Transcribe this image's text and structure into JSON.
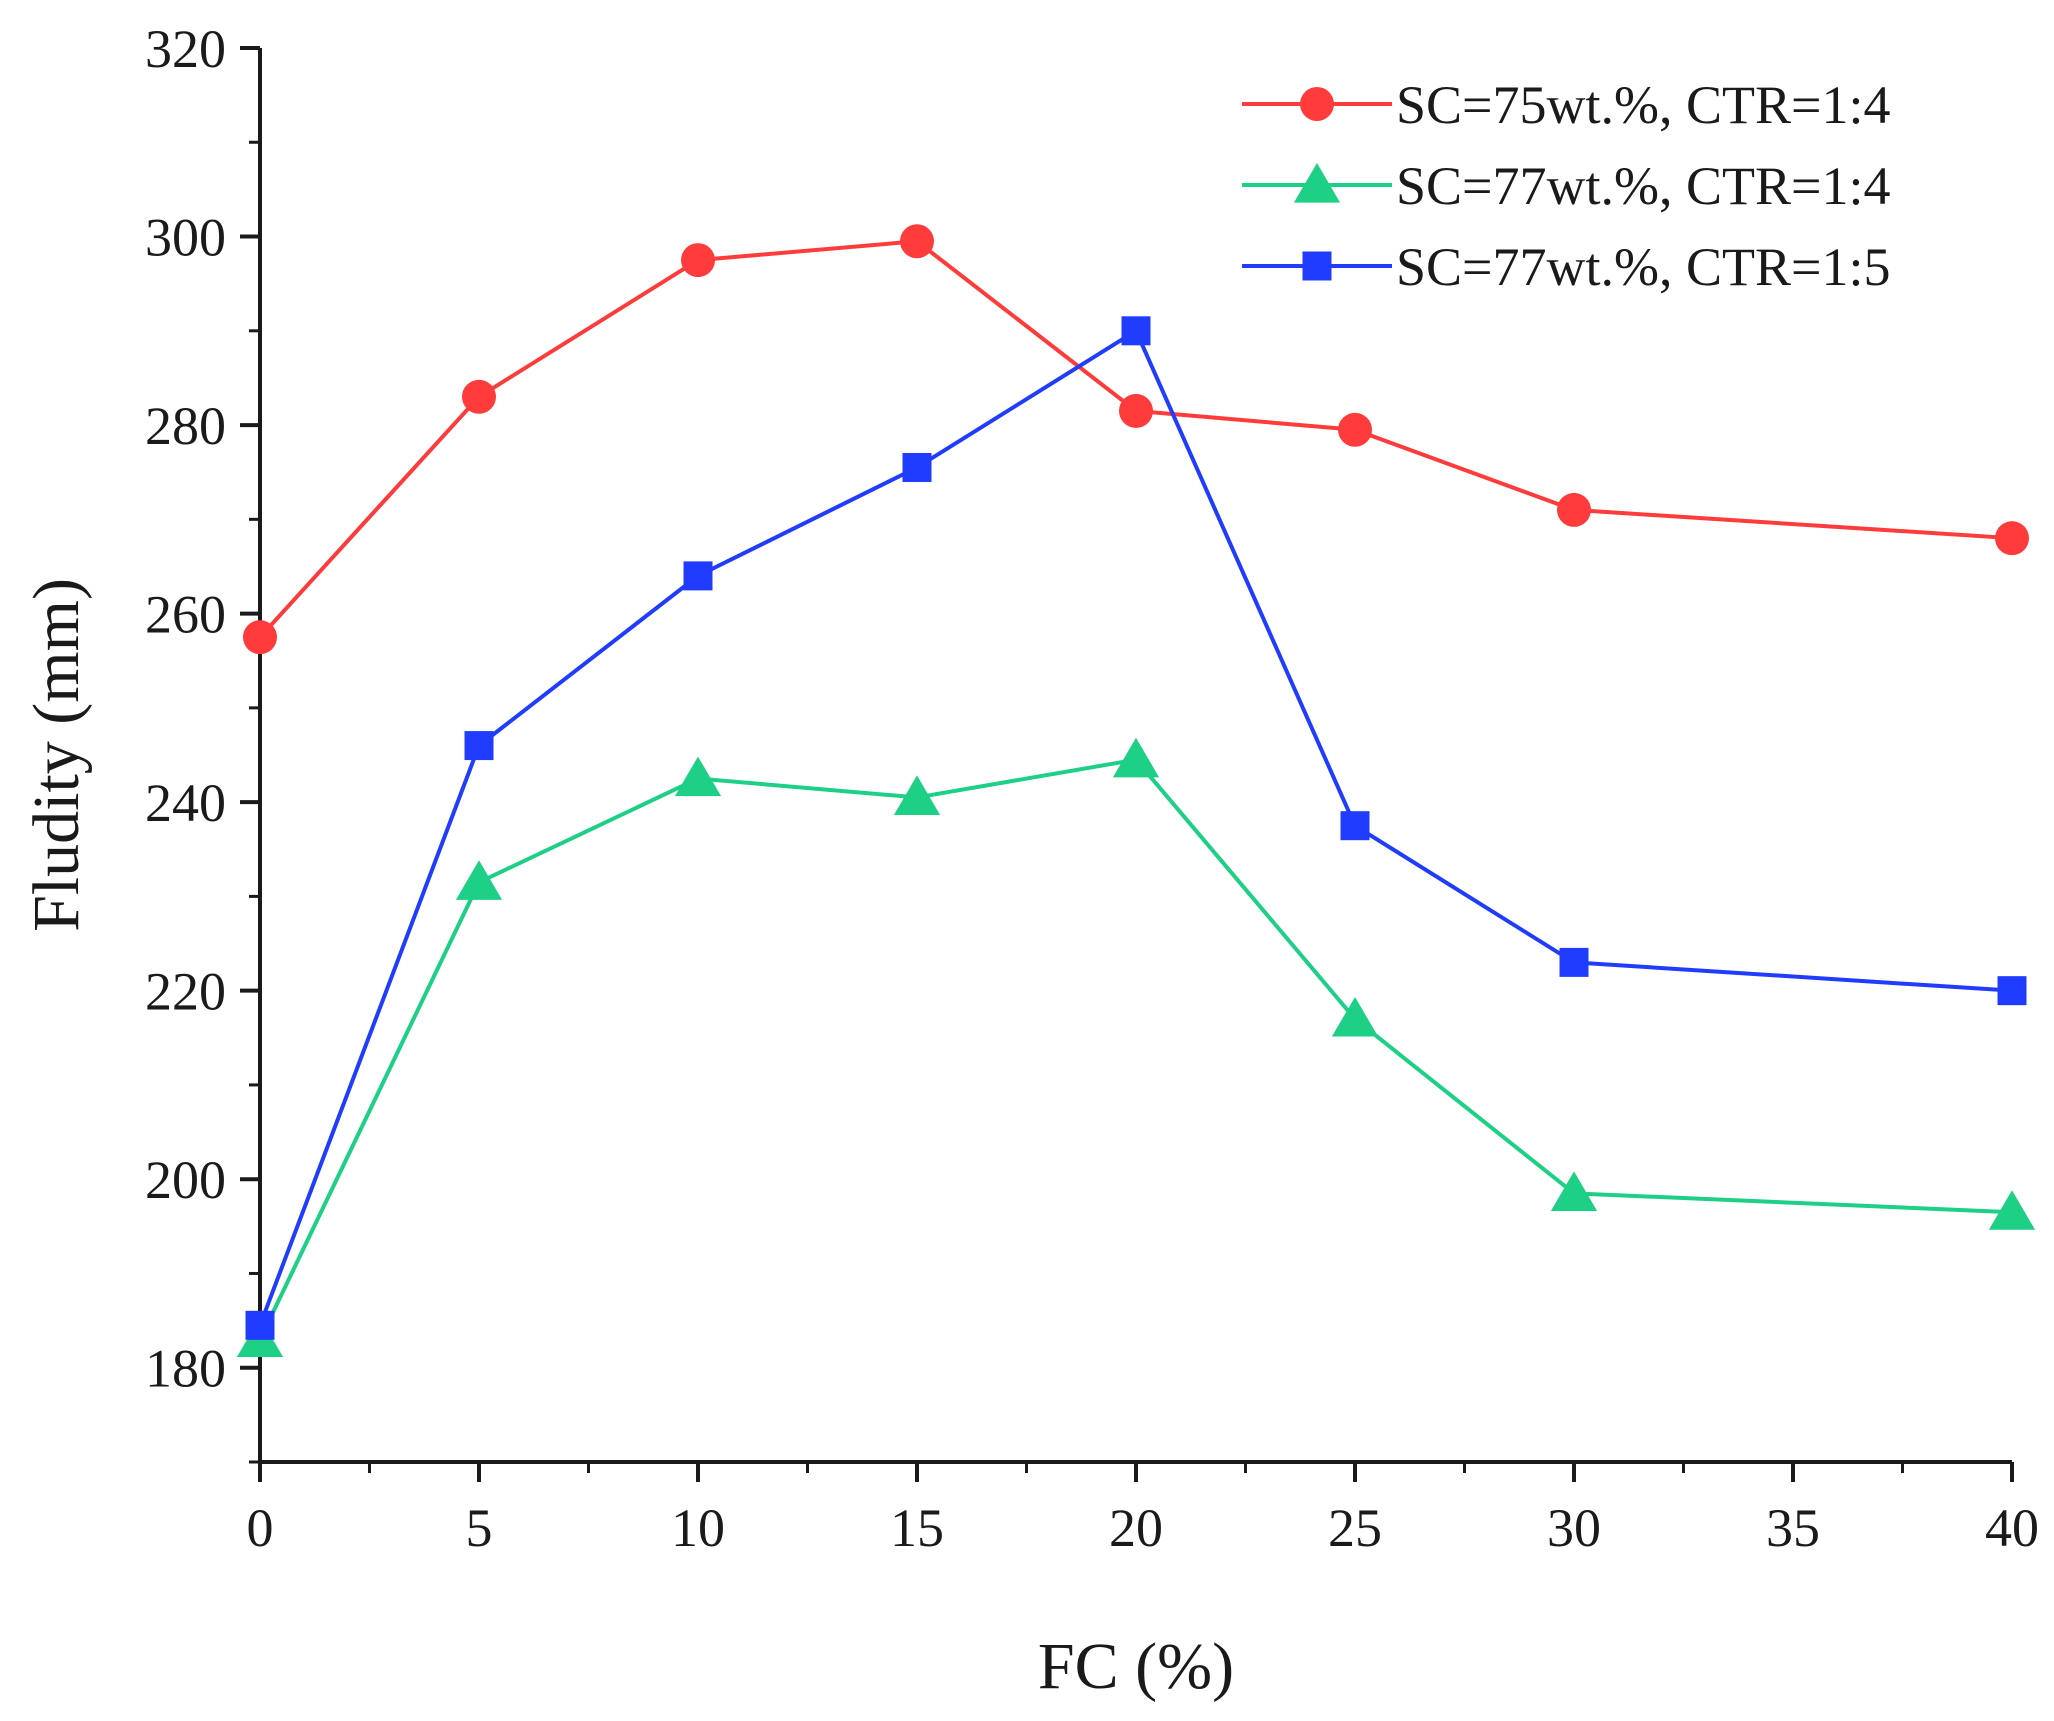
{
  "chart_data": {
    "type": "line",
    "xlabel": "FC (%)",
    "ylabel": "Fludity (mm)",
    "xlim": [
      0,
      40
    ],
    "ylim": [
      170,
      320
    ],
    "xticks": [
      0,
      5,
      10,
      15,
      20,
      25,
      30,
      35,
      40
    ],
    "yticks": [
      180,
      200,
      220,
      240,
      260,
      280,
      300,
      320
    ],
    "grid": false,
    "legend_position": "top-right",
    "series": [
      {
        "name": "SC=75wt.%, CTR=1:4",
        "color": "#ff3b3b",
        "marker": "circle",
        "x": [
          0,
          5,
          10,
          15,
          20,
          25,
          30,
          40
        ],
        "y": [
          257.5,
          283,
          297.5,
          299.5,
          281.5,
          279.5,
          271,
          268
        ]
      },
      {
        "name": "SC=77wt.%, CTR=1:4",
        "color": "#1ecf86",
        "marker": "triangle",
        "x": [
          0,
          5,
          10,
          15,
          20,
          25,
          30,
          40
        ],
        "y": [
          183,
          231.5,
          242.5,
          240.5,
          244.5,
          217,
          198.5,
          196.5
        ]
      },
      {
        "name": "SC=77wt.%, CTR=1:5",
        "color": "#1f3cff",
        "marker": "square",
        "x": [
          0,
          5,
          10,
          15,
          20,
          25,
          30,
          40
        ],
        "y": [
          184.5,
          246,
          264,
          275.5,
          290,
          237.5,
          223,
          220
        ]
      }
    ]
  }
}
